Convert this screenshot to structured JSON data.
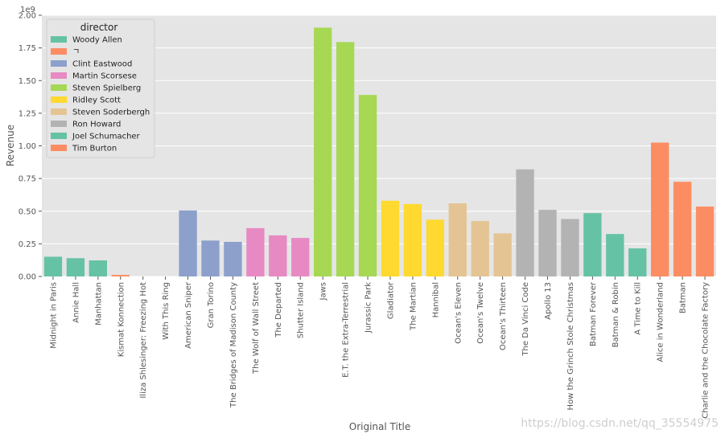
{
  "chart_data": {
    "type": "bar",
    "xlabel": "Original Title",
    "ylabel": "Revenue",
    "y_exponent_label": "1e9",
    "ylim": [
      0,
      2.0
    ],
    "yticks": [
      "0.00",
      "0.25",
      "0.50",
      "0.75",
      "1.00",
      "1.25",
      "1.50",
      "1.75",
      "2.00"
    ],
    "grid": true,
    "legend_title": "director",
    "legend_placement": "top-left",
    "legend": [
      {
        "name": "Woody Allen",
        "color": "#66c2a5"
      },
      {
        "name": "ㄱ",
        "color": "#fc8d62"
      },
      {
        "name": "Clint Eastwood",
        "color": "#8da0cb"
      },
      {
        "name": "Martin Scorsese",
        "color": "#e78ac3"
      },
      {
        "name": "Steven Spielberg",
        "color": "#a6d854"
      },
      {
        "name": "Ridley Scott",
        "color": "#ffd92f"
      },
      {
        "name": "Steven Soderbergh",
        "color": "#e5c494"
      },
      {
        "name": "Ron Howard",
        "color": "#b3b3b3"
      },
      {
        "name": "Joel Schumacher",
        "color": "#66c2a5"
      },
      {
        "name": "Tim Burton",
        "color": "#fc8d62"
      }
    ],
    "categories": [
      "Midnight in Paris",
      "Annie Hall",
      "Manhattan",
      "Kismat Konnection",
      "Iliza Shlesinger: Freezing Hot",
      "With This Ring",
      "American Sniper",
      "Gran Torino",
      "The Bridges of Madison County",
      "The Wolf of Wall Street",
      "The Departed",
      "Shutter Island",
      "Jaws",
      "E.T. the Extra-Terrestrial",
      "Jurassic Park",
      "Gladiator",
      "The Martian",
      "Hannibal",
      "Ocean's Eleven",
      "Ocean's Twelve",
      "Ocean's Thirteen",
      "The Da Vinci Code",
      "Apollo 13",
      "How the Grinch Stole Christmas",
      "Batman Forever",
      "Batman & Robin",
      "A Time to Kill",
      "Alice in Wonderland",
      "Batman",
      "Charlie and the Chocolate Factory"
    ],
    "values": [
      0.151,
      0.14,
      0.123,
      0.012,
      0.0,
      0.0,
      0.505,
      0.275,
      0.265,
      0.37,
      0.315,
      0.295,
      1.905,
      1.795,
      1.39,
      0.58,
      0.555,
      0.435,
      0.56,
      0.425,
      0.33,
      0.82,
      0.51,
      0.44,
      0.485,
      0.325,
      0.215,
      1.025,
      0.725,
      0.535
    ],
    "bar_colors": [
      "#66c2a5",
      "#66c2a5",
      "#66c2a5",
      "#fc8d62",
      "#fc8d62",
      "#fc8d62",
      "#8da0cb",
      "#8da0cb",
      "#8da0cb",
      "#e78ac3",
      "#e78ac3",
      "#e78ac3",
      "#a6d854",
      "#a6d854",
      "#a6d854",
      "#ffd92f",
      "#ffd92f",
      "#ffd92f",
      "#e5c494",
      "#e5c494",
      "#e5c494",
      "#b3b3b3",
      "#b3b3b3",
      "#b3b3b3",
      "#66c2a5",
      "#66c2a5",
      "#66c2a5",
      "#fc8d62",
      "#fc8d62",
      "#fc8d62"
    ]
  },
  "watermark": "https://blog.csdn.net/qq_35554975"
}
